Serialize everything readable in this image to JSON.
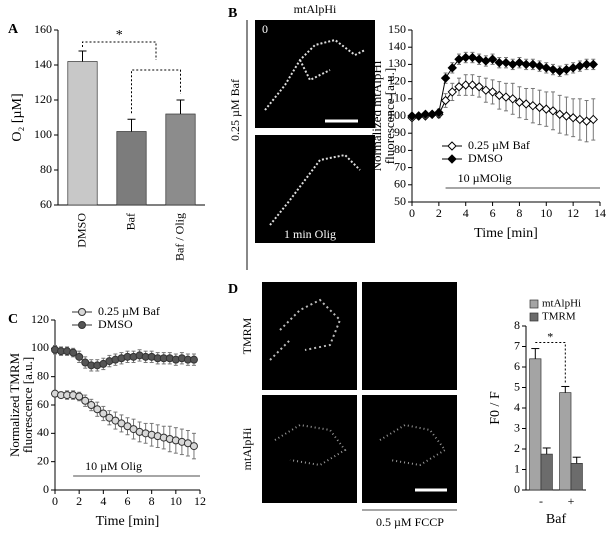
{
  "figure": {
    "panel_letters": [
      "A",
      "B",
      "C",
      "D"
    ],
    "image_labels": {
      "b_title": "mtAlpHi",
      "b_time": "0",
      "b_side": "0.25 µM Baf",
      "b_bottom": "1 min Olig",
      "d_row1": "TMRM",
      "d_row2": "mtAlpHi",
      "d_bottom": "0.5  µM FCCP"
    }
  },
  "chart_data": [
    {
      "type": "bar",
      "ylabel": "O₂ [µM]",
      "categories": [
        "DMSO",
        "Baf",
        "Baf / Olig"
      ],
      "series": [
        {
          "values": [
            142,
            102,
            112
          ],
          "errors": [
            6,
            7,
            8
          ],
          "colors": [
            "#c8c8c8",
            "#7c7c7c",
            "#8c8c8c"
          ]
        }
      ],
      "ylim": [
        60,
        160
      ],
      "yticks": [
        60,
        80,
        100,
        120,
        140,
        160
      ],
      "significance": "*"
    },
    {
      "type": "line",
      "ylabel": [
        "Normalized mtAlpHi",
        "fluorescence [a.u.]"
      ],
      "xlabel": "Time [min]",
      "x": [
        0,
        0.5,
        1,
        1.5,
        2,
        2.5,
        3,
        3.5,
        4,
        4.5,
        5,
        5.5,
        6,
        6.5,
        7,
        7.5,
        8,
        8.5,
        9,
        9.5,
        10,
        10.5,
        11,
        11.5,
        12,
        12.5,
        13,
        13.5
      ],
      "series": [
        {
          "name": "0.25 µM Baf",
          "marker": "diamond",
          "color": "#000",
          "fill": "#fff",
          "values": [
            99,
            100,
            100,
            101,
            101,
            109,
            114,
            117,
            118,
            118,
            117,
            115,
            114,
            112,
            111,
            110,
            108,
            107,
            106,
            105,
            104,
            103,
            101,
            100,
            99,
            98,
            97,
            98
          ],
          "errors": [
            1,
            1,
            1,
            1,
            2,
            4,
            5,
            5,
            6,
            6,
            6,
            7,
            7,
            8,
            8,
            9,
            9,
            9,
            10,
            10,
            10,
            11,
            11,
            11,
            11,
            12,
            12,
            12
          ]
        },
        {
          "name": "DMSO",
          "marker": "diamond",
          "color": "#000",
          "fill": "#000",
          "values": [
            100,
            100,
            101,
            101,
            102,
            122,
            128,
            133,
            134,
            134,
            133,
            132,
            133,
            131,
            131,
            130,
            131,
            130,
            130,
            129,
            128,
            127,
            126,
            127,
            128,
            129,
            130,
            130
          ],
          "errors": [
            1,
            1,
            1,
            1,
            2,
            3,
            3,
            3,
            3,
            3,
            3,
            3,
            3,
            3,
            3,
            3,
            3,
            3,
            3,
            3,
            3,
            3,
            3,
            3,
            3,
            3,
            3,
            3
          ]
        }
      ],
      "xlim": [
        0,
        14
      ],
      "xticks": [
        0,
        2,
        4,
        6,
        8,
        10,
        12,
        14
      ],
      "ylim": [
        50,
        150
      ],
      "yticks": [
        50,
        60,
        70,
        80,
        90,
        100,
        110,
        120,
        130,
        140,
        150
      ],
      "annotation": {
        "text": "10 µMOlig",
        "x": [
          2.5,
          14
        ]
      }
    },
    {
      "type": "line",
      "ylabel": [
        "Normalized TMRM",
        "fluorescence [a.u.]"
      ],
      "xlabel": "Time [min]",
      "x": [
        0,
        0.5,
        1,
        1.5,
        2,
        2.5,
        3,
        3.5,
        4,
        4.5,
        5,
        5.5,
        6,
        6.5,
        7,
        7.5,
        8,
        8.5,
        9,
        9.5,
        10,
        10.5,
        11,
        11.5
      ],
      "series": [
        {
          "name": "0.25 µM Baf",
          "marker": "circle",
          "color": "#333",
          "fill": "#d8d8d8",
          "values": [
            68,
            67,
            67,
            67,
            66,
            63,
            60,
            57,
            54,
            51,
            49,
            47,
            45,
            43,
            41,
            40,
            39,
            38,
            37,
            36,
            35,
            34,
            33,
            31
          ],
          "errors": [
            2,
            2,
            3,
            3,
            3,
            4,
            4,
            5,
            5,
            5,
            6,
            6,
            6,
            7,
            7,
            7,
            8,
            8,
            8,
            9,
            9,
            9,
            9,
            9
          ]
        },
        {
          "name": "DMSO",
          "marker": "circle",
          "color": "#333",
          "fill": "#555",
          "values": [
            99,
            98,
            98,
            97,
            94,
            90,
            88,
            88,
            89,
            91,
            92,
            93,
            94,
            94,
            95,
            94,
            94,
            93,
            93,
            93,
            92,
            93,
            92,
            92
          ],
          "errors": [
            3,
            3,
            3,
            3,
            4,
            4,
            4,
            4,
            4,
            4,
            4,
            4,
            4,
            4,
            4,
            4,
            4,
            4,
            4,
            4,
            4,
            4,
            4,
            4
          ]
        }
      ],
      "xlim": [
        0,
        12
      ],
      "xticks": [
        0,
        2,
        4,
        6,
        8,
        10,
        12
      ],
      "ylim": [
        0,
        120
      ],
      "yticks": [
        0,
        20,
        40,
        60,
        80,
        100,
        120
      ],
      "annotation": {
        "text": "10 µM Olig",
        "x": [
          1.5,
          12
        ]
      }
    },
    {
      "type": "bar",
      "ylabel": "F0 / F",
      "xlabel": "Baf",
      "categories": [
        "-",
        "+"
      ],
      "series": [
        {
          "name": "mtAlpHi",
          "color": "#a4a4a4",
          "values": [
            6.4,
            4.75
          ],
          "errors": [
            0.5,
            0.3
          ]
        },
        {
          "name": "TMRM",
          "color": "#6c6c6c",
          "values": [
            1.75,
            1.3
          ],
          "errors": [
            0.3,
            0.3
          ]
        }
      ],
      "ylim": [
        0,
        8
      ],
      "yticks": [
        0,
        1,
        2,
        3,
        4,
        5,
        6,
        7,
        8
      ],
      "significance": "*"
    }
  ]
}
